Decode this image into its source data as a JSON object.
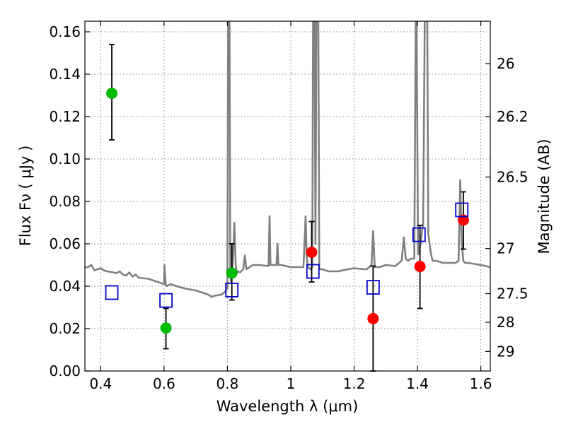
{
  "chart_data": {
    "type": "scatter",
    "xlabel": "Wavelength  λ (μm)",
    "ylabel": "Flux  Fν  ( μJy )",
    "ylabel_right": "Magnitude (AB)",
    "xlim": [
      0.35,
      1.63
    ],
    "ylim": [
      0,
      0.165
    ],
    "x_ticks": [
      0.4,
      0.6,
      0.8,
      1.0,
      1.2,
      1.4,
      1.6
    ],
    "x_tick_labels": [
      "0.4",
      "0.6",
      "0.8",
      "1",
      "1.2",
      "1.4",
      "1.6"
    ],
    "y_ticks": [
      0,
      0.02,
      0.04,
      0.06,
      0.08,
      0.1,
      0.12,
      0.14,
      0.16
    ],
    "y_tick_labels": [
      "0.00",
      "0.02",
      "0.04",
      "0.06",
      "0.08",
      "0.10",
      "0.12",
      "0.14",
      "0.16"
    ],
    "right_ticks": [
      {
        "label": "26",
        "flux": 0.145
      },
      {
        "label": "26.2",
        "flux": 0.12
      },
      {
        "label": "26.5",
        "flux": 0.0915
      },
      {
        "label": "27",
        "flux": 0.0578
      },
      {
        "label": "27.5",
        "flux": 0.0365
      },
      {
        "label": "28",
        "flux": 0.023
      },
      {
        "label": "29",
        "flux": 0.0092
      }
    ],
    "grid": true,
    "colors": {
      "green": "#00bb00",
      "red": "#ff0000",
      "blue": "#0000cc",
      "model": "#808080"
    },
    "series": [
      {
        "marker": "circle",
        "color": "#00bb00",
        "points": [
          {
            "x": 0.435,
            "y": 0.131,
            "err_low": 0.109,
            "err_high": 0.154
          },
          {
            "x": 0.606,
            "y": 0.0203,
            "err_low": 0.0105,
            "err_high": 0.0295
          },
          {
            "x": 0.814,
            "y": 0.0462,
            "err_low": 0.0335,
            "err_high": 0.06
          }
        ]
      },
      {
        "marker": "circle",
        "color": "#ff0000",
        "points": [
          {
            "x": 1.066,
            "y": 0.056,
            "err_low": 0.042,
            "err_high": 0.0705
          },
          {
            "x": 1.26,
            "y": 0.0247,
            "err_low": 0.0,
            "err_high": 0.0495
          },
          {
            "x": 1.408,
            "y": 0.0493,
            "err_low": 0.0295,
            "err_high": 0.0687
          },
          {
            "x": 1.545,
            "y": 0.0712,
            "err_low": 0.0575,
            "err_high": 0.0845
          }
        ]
      },
      {
        "marker": "square",
        "color": "#0000cc",
        "points": [
          {
            "x": 0.435,
            "y": 0.037
          },
          {
            "x": 0.606,
            "y": 0.0333
          },
          {
            "x": 0.814,
            "y": 0.0382
          },
          {
            "x": 1.07,
            "y": 0.047
          },
          {
            "x": 1.26,
            "y": 0.0395
          },
          {
            "x": 1.405,
            "y": 0.0643
          },
          {
            "x": 1.54,
            "y": 0.076
          }
        ]
      }
    ],
    "model_spectrum": {
      "x": [
        0.35,
        0.36,
        0.37,
        0.38,
        0.39,
        0.4,
        0.41,
        0.42,
        0.43,
        0.44,
        0.45,
        0.46,
        0.47,
        0.48,
        0.49,
        0.5,
        0.51,
        0.52,
        0.55,
        0.58,
        0.6,
        0.601,
        0.605,
        0.609,
        0.62,
        0.65,
        0.68,
        0.7,
        0.72,
        0.74,
        0.75,
        0.76,
        0.78,
        0.79,
        0.8,
        0.803,
        0.806,
        0.809,
        0.812,
        0.815,
        0.818,
        0.822,
        0.826,
        0.83,
        0.834,
        0.84,
        0.85,
        0.855,
        0.86,
        0.87,
        0.88,
        0.9,
        0.93,
        0.933,
        0.936,
        0.94,
        0.955,
        0.958,
        0.961,
        0.97,
        1.0,
        1.04,
        1.047,
        1.05,
        1.054,
        1.062,
        1.068,
        1.071,
        1.074,
        1.078,
        1.082,
        1.086,
        1.09,
        1.1,
        1.12,
        1.15,
        1.18,
        1.2,
        1.23,
        1.24,
        1.255,
        1.26,
        1.265,
        1.28,
        1.3,
        1.33,
        1.35,
        1.357,
        1.363,
        1.37,
        1.38,
        1.39,
        1.396,
        1.402,
        1.41,
        1.418,
        1.425,
        1.43,
        1.434,
        1.438,
        1.443,
        1.448,
        1.46,
        1.48,
        1.5,
        1.52,
        1.53,
        1.535,
        1.54,
        1.545,
        1.55,
        1.56,
        1.58,
        1.6,
        1.63
      ],
      "y": [
        0.0488,
        0.049,
        0.05,
        0.0475,
        0.048,
        0.0485,
        0.0475,
        0.047,
        0.0468,
        0.0465,
        0.0462,
        0.047,
        0.0455,
        0.045,
        0.0465,
        0.0445,
        0.0455,
        0.044,
        0.0435,
        0.042,
        0.041,
        0.05,
        0.041,
        0.04,
        0.041,
        0.0395,
        0.0385,
        0.038,
        0.037,
        0.036,
        0.035,
        0.0355,
        0.036,
        0.037,
        0.039,
        0.2,
        0.2,
        0.045,
        0.042,
        0.046,
        0.055,
        0.07,
        0.05,
        0.046,
        0.047,
        0.0465,
        0.048,
        0.0545,
        0.048,
        0.049,
        0.05,
        0.05,
        0.0495,
        0.073,
        0.05,
        0.05,
        0.05,
        0.06,
        0.05,
        0.05,
        0.049,
        0.049,
        0.073,
        0.054,
        0.049,
        0.048,
        0.049,
        0.2,
        0.2,
        0.06,
        0.2,
        0.2,
        0.048,
        0.048,
        0.047,
        0.047,
        0.048,
        0.0485,
        0.048,
        0.048,
        0.05,
        0.066,
        0.049,
        0.049,
        0.05,
        0.0495,
        0.052,
        0.063,
        0.053,
        0.052,
        0.053,
        0.053,
        0.2,
        0.055,
        0.06,
        0.07,
        0.2,
        0.2,
        0.065,
        0.06,
        0.055,
        0.052,
        0.052,
        0.051,
        0.051,
        0.051,
        0.052,
        0.09,
        0.06,
        0.052,
        0.051,
        0.051,
        0.0505,
        0.05,
        0.049
      ]
    }
  }
}
